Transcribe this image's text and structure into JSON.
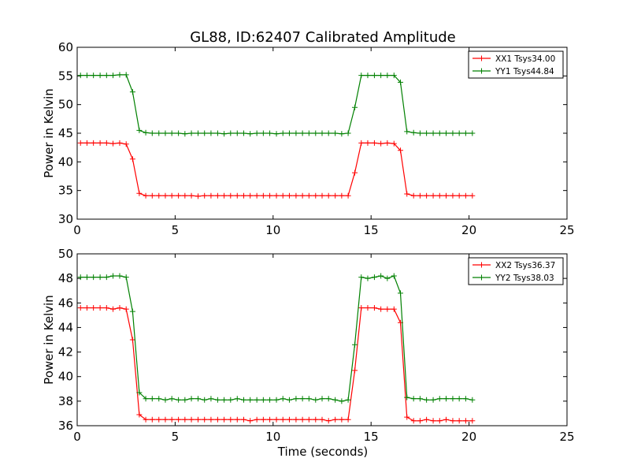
{
  "figure": {
    "title": "GL88, ID:62407 Calibrated Amplitude",
    "xlabel": "Time (seconds)"
  },
  "chart_data": [
    {
      "type": "line",
      "title": "GL88, ID:62407 Calibrated Amplitude",
      "xlabel": "",
      "ylabel": "Power in Kelvin",
      "xlim": [
        0,
        25
      ],
      "ylim": [
        30,
        60
      ],
      "xticks": [
        0,
        5,
        10,
        15,
        20,
        25
      ],
      "yticks": [
        30,
        35,
        40,
        45,
        50,
        55,
        60
      ],
      "grid": false,
      "legend_position": "top-right",
      "x": [
        0.17,
        0.5,
        0.83,
        1.17,
        1.5,
        1.83,
        2.17,
        2.5,
        2.83,
        3.17,
        3.5,
        3.83,
        4.17,
        4.5,
        4.83,
        5.17,
        5.5,
        5.83,
        6.17,
        6.5,
        6.83,
        7.17,
        7.5,
        7.83,
        8.17,
        8.5,
        8.83,
        9.17,
        9.5,
        9.83,
        10.17,
        10.5,
        10.83,
        11.17,
        11.5,
        11.83,
        12.17,
        12.5,
        12.83,
        13.17,
        13.5,
        13.83,
        14.17,
        14.5,
        14.83,
        15.17,
        15.5,
        15.83,
        16.17,
        16.5,
        16.83,
        17.17,
        17.5,
        17.83,
        18.17,
        18.5,
        18.83,
        19.17,
        19.5,
        19.83,
        20.17
      ],
      "series": [
        {
          "name": "XX1 Tsys34.00",
          "color": "#ff0000",
          "values": [
            43.3,
            43.3,
            43.3,
            43.3,
            43.3,
            43.2,
            43.3,
            43.1,
            40.5,
            34.5,
            34.1,
            34.1,
            34.1,
            34.1,
            34.1,
            34.1,
            34.1,
            34.1,
            34.0,
            34.1,
            34.1,
            34.1,
            34.1,
            34.1,
            34.1,
            34.1,
            34.1,
            34.1,
            34.1,
            34.1,
            34.1,
            34.1,
            34.1,
            34.1,
            34.1,
            34.1,
            34.1,
            34.1,
            34.1,
            34.1,
            34.1,
            34.1,
            38.1,
            43.3,
            43.3,
            43.3,
            43.2,
            43.3,
            43.2,
            42.0,
            34.4,
            34.1,
            34.1,
            34.1,
            34.1,
            34.1,
            34.1,
            34.1,
            34.1,
            34.1,
            34.1
          ]
        },
        {
          "name": "YY1 Tsys44.84",
          "color": "#008000",
          "values": [
            55.1,
            55.1,
            55.1,
            55.1,
            55.1,
            55.1,
            55.2,
            55.2,
            52.2,
            45.5,
            45.1,
            45.0,
            45.0,
            45.0,
            45.0,
            45.0,
            44.9,
            45.0,
            45.0,
            45.0,
            45.0,
            45.0,
            44.9,
            45.0,
            45.0,
            45.0,
            44.9,
            45.0,
            45.0,
            45.0,
            44.9,
            45.0,
            45.0,
            45.0,
            45.0,
            45.0,
            45.0,
            45.0,
            45.0,
            45.0,
            44.9,
            45.0,
            49.5,
            55.1,
            55.1,
            55.1,
            55.1,
            55.1,
            55.1,
            53.9,
            45.3,
            45.1,
            45.0,
            45.0,
            45.0,
            45.0,
            45.0,
            45.0,
            45.0,
            45.0,
            45.0
          ]
        }
      ]
    },
    {
      "type": "line",
      "title": "",
      "xlabel": "Time (seconds)",
      "ylabel": "Power in Kelvin",
      "xlim": [
        0,
        25
      ],
      "ylim": [
        36,
        50
      ],
      "xticks": [
        0,
        5,
        10,
        15,
        20,
        25
      ],
      "yticks": [
        36,
        38,
        40,
        42,
        44,
        46,
        48,
        50
      ],
      "grid": false,
      "legend_position": "top-right",
      "x": [
        0.17,
        0.5,
        0.83,
        1.17,
        1.5,
        1.83,
        2.17,
        2.5,
        2.83,
        3.17,
        3.5,
        3.83,
        4.17,
        4.5,
        4.83,
        5.17,
        5.5,
        5.83,
        6.17,
        6.5,
        6.83,
        7.17,
        7.5,
        7.83,
        8.17,
        8.5,
        8.83,
        9.17,
        9.5,
        9.83,
        10.17,
        10.5,
        10.83,
        11.17,
        11.5,
        11.83,
        12.17,
        12.5,
        12.83,
        13.17,
        13.5,
        13.83,
        14.17,
        14.5,
        14.83,
        15.17,
        15.5,
        15.83,
        16.17,
        16.5,
        16.83,
        17.17,
        17.5,
        17.83,
        18.17,
        18.5,
        18.83,
        19.17,
        19.5,
        19.83,
        20.17
      ],
      "series": [
        {
          "name": "XX2 Tsys36.37",
          "color": "#ff0000",
          "values": [
            45.6,
            45.6,
            45.6,
            45.6,
            45.6,
            45.5,
            45.6,
            45.5,
            43.0,
            36.9,
            36.5,
            36.5,
            36.5,
            36.5,
            36.5,
            36.5,
            36.5,
            36.5,
            36.5,
            36.5,
            36.5,
            36.5,
            36.5,
            36.5,
            36.5,
            36.5,
            36.4,
            36.5,
            36.5,
            36.5,
            36.5,
            36.5,
            36.5,
            36.5,
            36.5,
            36.5,
            36.5,
            36.5,
            36.4,
            36.5,
            36.5,
            36.5,
            40.5,
            45.6,
            45.6,
            45.6,
            45.5,
            45.5,
            45.5,
            44.4,
            36.7,
            36.4,
            36.4,
            36.5,
            36.4,
            36.4,
            36.5,
            36.4,
            36.4,
            36.4,
            36.4
          ]
        },
        {
          "name": "YY2 Tsys38.03",
          "color": "#008000",
          "values": [
            48.1,
            48.1,
            48.1,
            48.1,
            48.1,
            48.2,
            48.2,
            48.1,
            45.3,
            38.7,
            38.2,
            38.2,
            38.2,
            38.1,
            38.2,
            38.1,
            38.1,
            38.2,
            38.2,
            38.1,
            38.2,
            38.1,
            38.1,
            38.1,
            38.2,
            38.1,
            38.1,
            38.1,
            38.1,
            38.1,
            38.1,
            38.2,
            38.1,
            38.2,
            38.2,
            38.2,
            38.1,
            38.2,
            38.2,
            38.1,
            38.0,
            38.1,
            42.6,
            48.1,
            48.0,
            48.1,
            48.2,
            48.0,
            48.2,
            46.8,
            38.3,
            38.2,
            38.2,
            38.1,
            38.1,
            38.2,
            38.2,
            38.2,
            38.2,
            38.2,
            38.1
          ]
        }
      ]
    }
  ]
}
